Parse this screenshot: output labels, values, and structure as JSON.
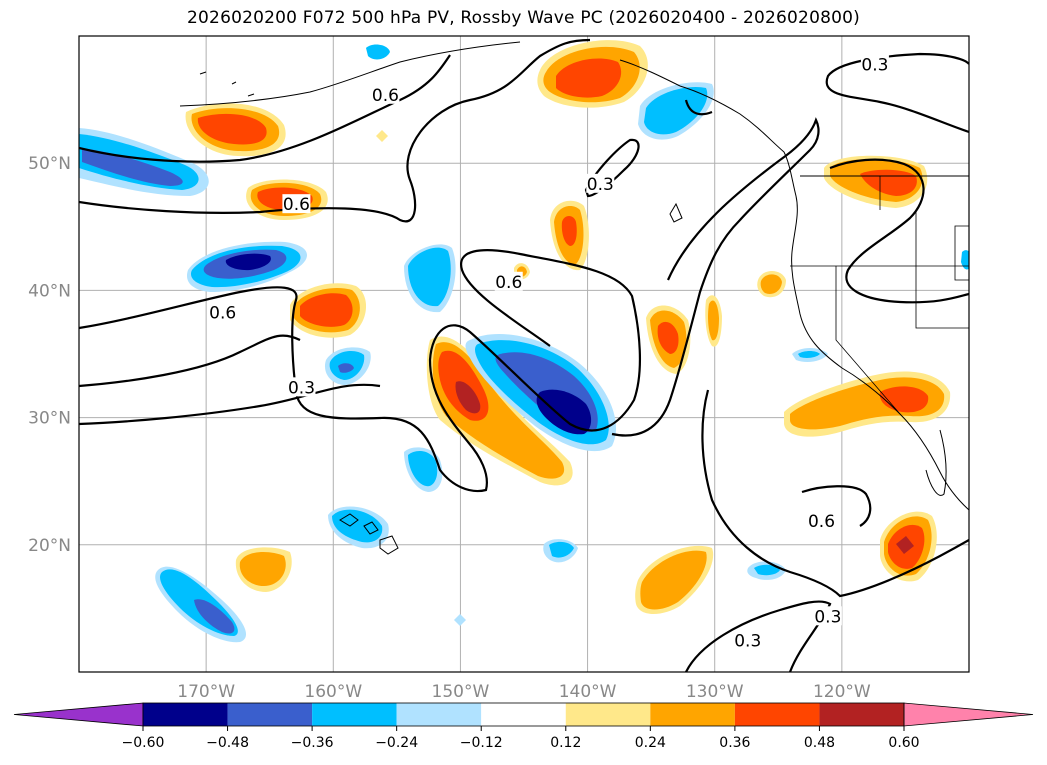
{
  "title": "2026020200 F072 500 hPa PV, Rossby Wave PC (2026020400 - 2026020800)",
  "chart_data": {
    "type": "contour_map",
    "variable": "500 hPa PV, Rossby Wave PC",
    "lon_range": [
      -180,
      -110
    ],
    "lat_range": [
      10,
      60
    ],
    "lat_ticks": [
      {
        "value": 50,
        "label": "50°N"
      },
      {
        "value": 40,
        "label": "40°N"
      },
      {
        "value": 30,
        "label": "30°N"
      },
      {
        "value": 20,
        "label": "20°N"
      }
    ],
    "lon_ticks": [
      {
        "value": -170,
        "label": "170°W"
      },
      {
        "value": -160,
        "label": "160°W"
      },
      {
        "value": -150,
        "label": "150°W"
      },
      {
        "value": -140,
        "label": "140°W"
      },
      {
        "value": -130,
        "label": "130°W"
      },
      {
        "value": -120,
        "label": "120°W"
      }
    ],
    "colorbar": {
      "ticks": [
        "−0.60",
        "−0.48",
        "−0.36",
        "−0.24",
        "−0.12",
        "0.12",
        "0.24",
        "0.36",
        "0.48",
        "0.60"
      ],
      "colors": [
        "#9932cc",
        "#00008b",
        "#3a5fcd",
        "#00bfff",
        "#b0e2ff",
        "#ffffff",
        "#ffe88a",
        "#ffa500",
        "#ff4500",
        "#b22222",
        "#ff82ab"
      ]
    },
    "contour_labels": [
      {
        "text": "0.6",
        "lon": -155.9,
        "lat": 55.3
      },
      {
        "text": "0.6",
        "lon": -162.9,
        "lat": 46.7
      },
      {
        "text": "0.6",
        "lon": -146.2,
        "lat": 40.6
      },
      {
        "text": "0.6",
        "lon": -168.7,
        "lat": 38.2
      },
      {
        "text": "0.3",
        "lon": -162.5,
        "lat": 32.3
      },
      {
        "text": "0.3",
        "lon": -139.0,
        "lat": 48.3
      },
      {
        "text": "0.3",
        "lon": -117.4,
        "lat": 57.7
      },
      {
        "text": "0.6",
        "lon": -121.6,
        "lat": 21.8
      },
      {
        "text": "0.3",
        "lon": -121.1,
        "lat": 14.3
      },
      {
        "text": "0.3",
        "lon": -127.4,
        "lat": 12.4
      }
    ]
  }
}
